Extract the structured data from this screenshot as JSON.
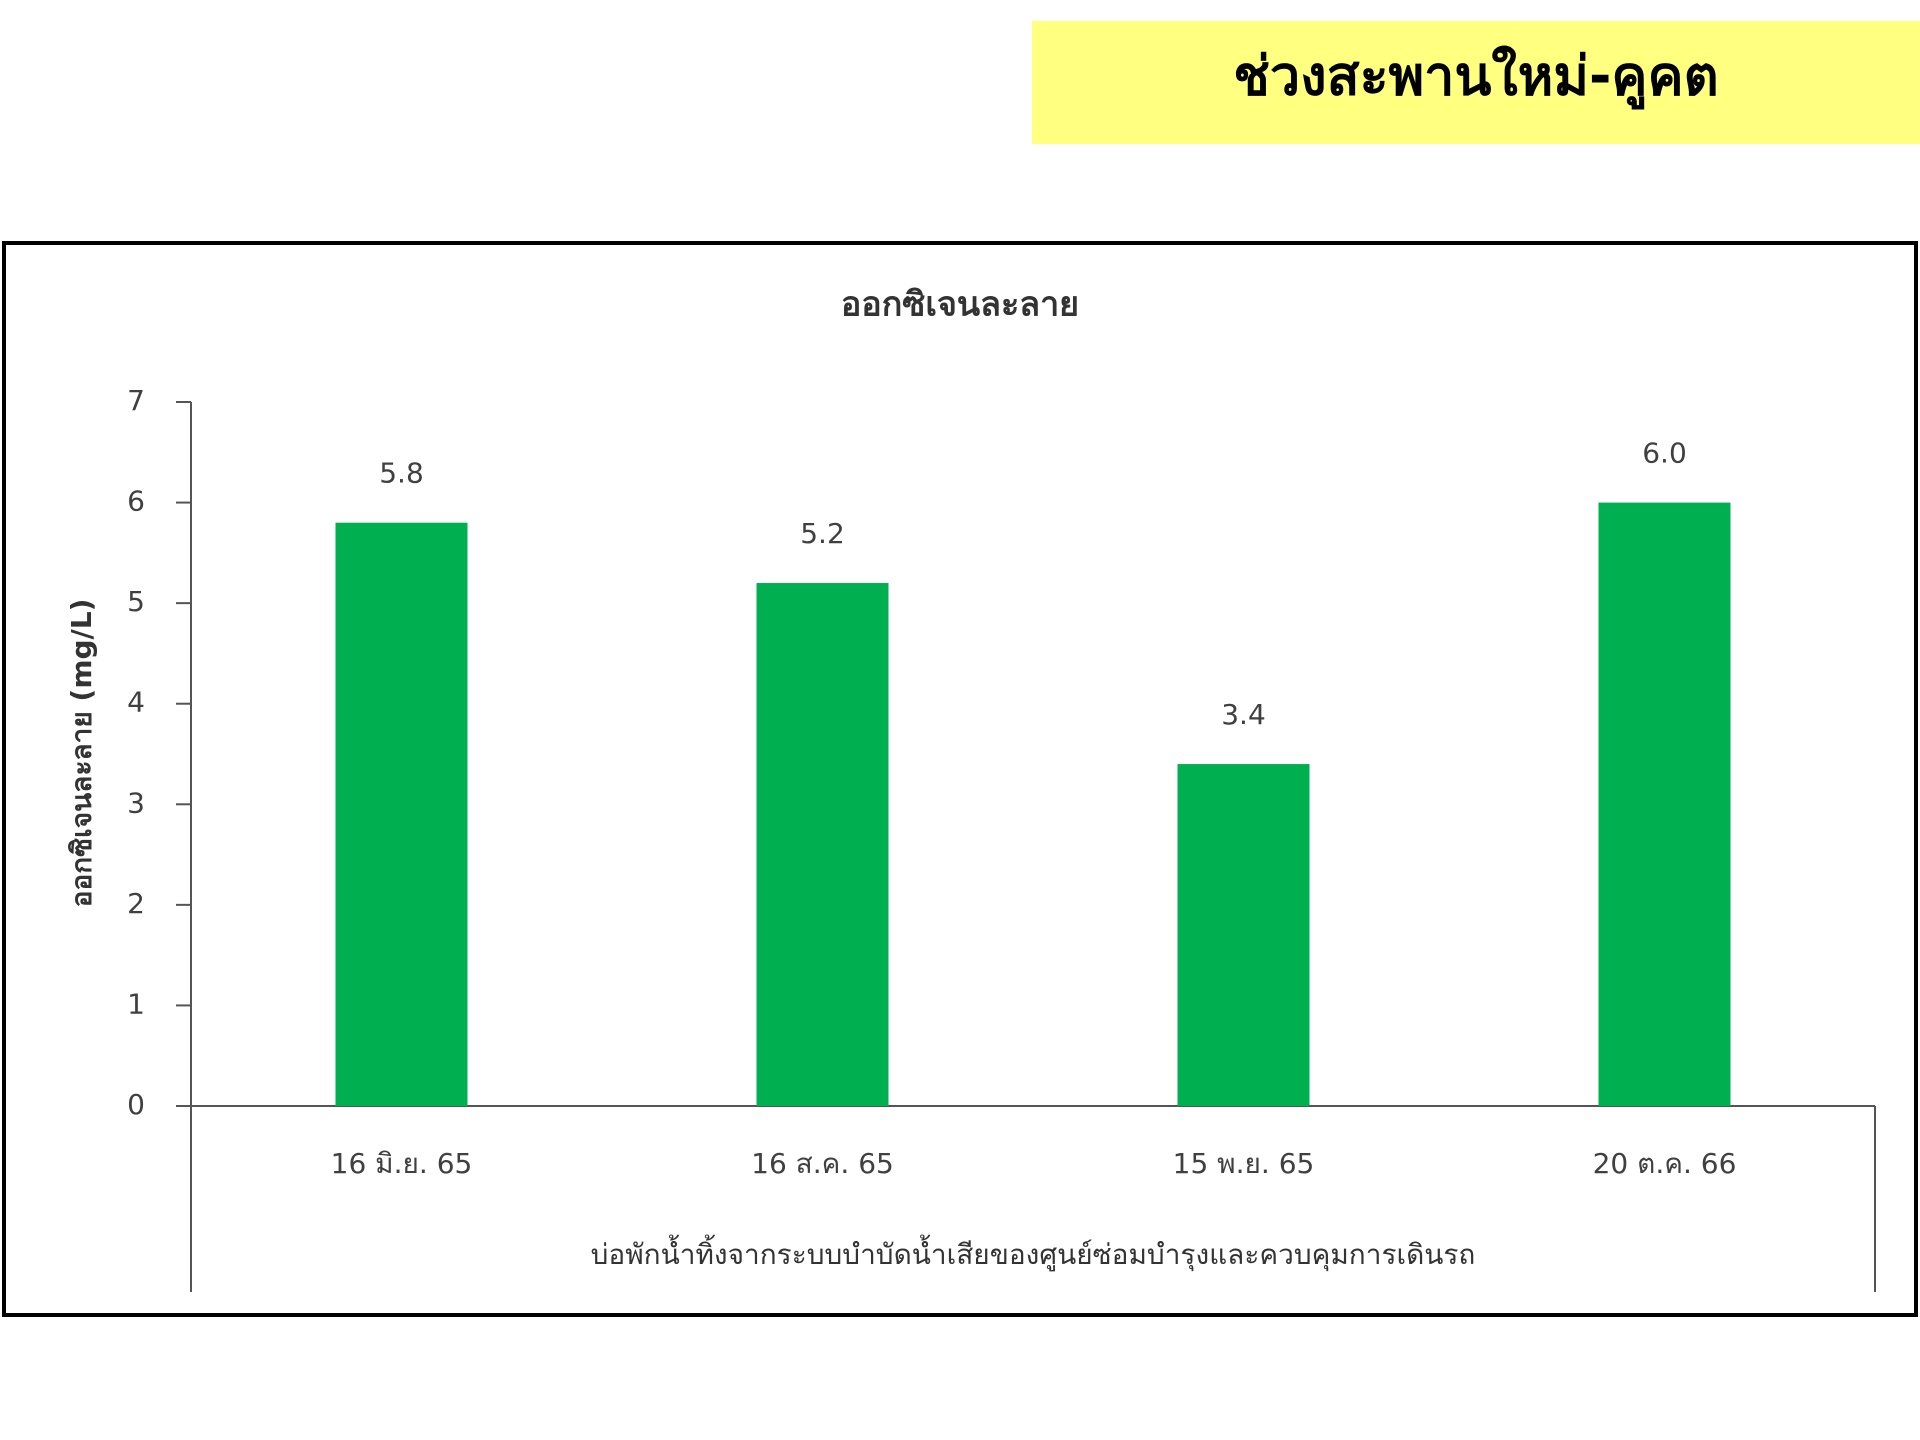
{
  "header": {
    "title": "ช่วงสะพานใหม่-คูคต"
  },
  "chart_data": {
    "type": "bar",
    "title": "ออกซิเจนละลาย",
    "y_label": "ออกซิเจนละลาย (mg/L)",
    "x_label": "บ่อพักน้ำทิ้งจากระบบบำบัดน้ำเสียของศูนย์ซ่อมบำรุงและควบคุมการเดินรถ",
    "categories": [
      "16 มิ.ย. 65",
      "16 ส.ค. 65",
      "15 พ.ย. 65",
      "20 ต.ค. 66"
    ],
    "values": [
      5.8,
      5.2,
      3.4,
      6.0
    ],
    "value_labels": [
      "5.8",
      "5.2",
      "3.4",
      "6.0"
    ],
    "color": "#00b050",
    "ylim": [
      0,
      7
    ],
    "yticks": [
      0,
      1,
      2,
      3,
      4,
      5,
      6,
      7
    ],
    "grid": false
  }
}
